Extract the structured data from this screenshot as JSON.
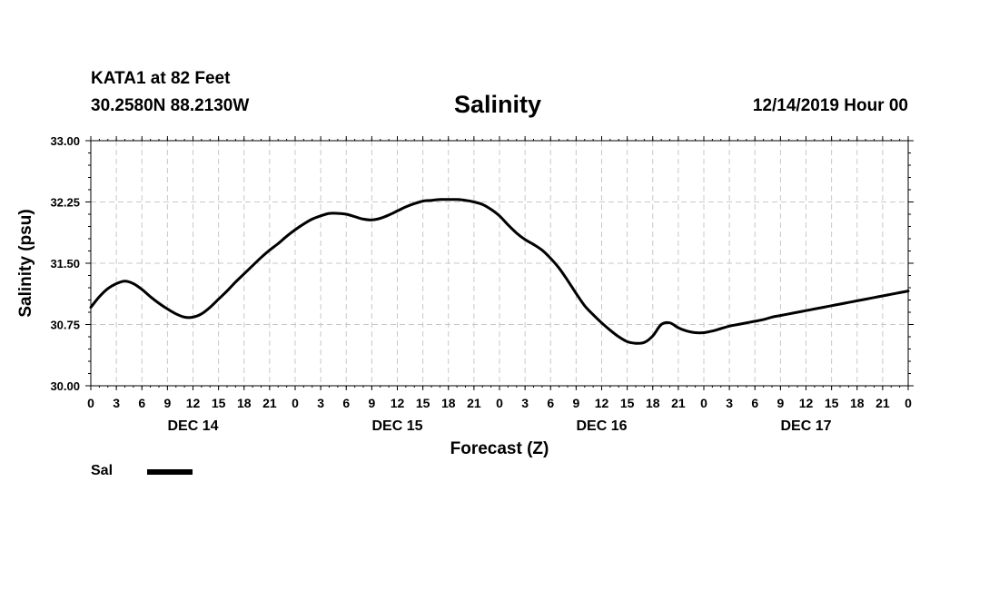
{
  "header": {
    "station": "KATA1 at 82 Feet",
    "coordinates": "30.2580N 88.2130W",
    "title": "Salinity",
    "run_time": "12/14/2019 Hour 00"
  },
  "legend": {
    "label": "Sal"
  },
  "chart_data": {
    "type": "line",
    "title": "Salinity",
    "xlabel": "Forecast (Z)",
    "ylabel": "Salinity (psu)",
    "ylim": [
      30.0,
      33.0
    ],
    "yticks": [
      "30.00",
      "30.75",
      "31.50",
      "32.25",
      "33.00"
    ],
    "xlim": [
      0,
      96
    ],
    "x_tick_step_hours": 3,
    "x_tick_labels": [
      "0",
      "3",
      "6",
      "9",
      "12",
      "15",
      "18",
      "21",
      "0",
      "3",
      "6",
      "9",
      "12",
      "15",
      "18",
      "21",
      "0",
      "3",
      "6",
      "9",
      "12",
      "15",
      "18",
      "21",
      "0",
      "3",
      "6",
      "9",
      "12",
      "15",
      "18",
      "21",
      "0"
    ],
    "day_labels": [
      {
        "label": "DEC 14",
        "hour": 12
      },
      {
        "label": "DEC 15",
        "hour": 36
      },
      {
        "label": "DEC 16",
        "hour": 60
      },
      {
        "label": "DEC 17",
        "hour": 84
      }
    ],
    "grid": true,
    "series": [
      {
        "name": "Sal",
        "color": "#000000",
        "x": [
          0,
          1,
          2,
          3,
          4,
          5,
          6,
          7,
          8,
          9,
          10,
          11,
          12,
          13,
          14,
          15,
          16,
          17,
          18,
          19,
          20,
          21,
          22,
          23,
          24,
          25,
          26,
          27,
          28,
          29,
          30,
          31,
          32,
          33,
          34,
          35,
          36,
          37,
          38,
          39,
          40,
          41,
          42,
          43,
          44,
          45,
          46,
          47,
          48,
          49,
          50,
          51,
          52,
          53,
          54,
          55,
          56,
          57,
          58,
          59,
          60,
          61,
          62,
          63,
          64,
          65,
          66,
          67,
          68,
          69,
          70,
          71,
          72,
          73,
          74,
          75,
          76,
          77,
          78,
          79,
          80,
          81,
          82,
          83,
          84,
          85,
          86,
          87,
          88,
          89,
          90,
          91,
          92,
          93,
          94,
          95,
          96
        ],
        "values": [
          30.96,
          31.09,
          31.19,
          31.25,
          31.28,
          31.25,
          31.18,
          31.09,
          31.01,
          30.94,
          30.88,
          30.84,
          30.84,
          30.88,
          30.96,
          31.06,
          31.16,
          31.27,
          31.37,
          31.47,
          31.57,
          31.66,
          31.74,
          31.83,
          31.91,
          31.98,
          32.04,
          32.08,
          32.11,
          32.11,
          32.1,
          32.07,
          32.04,
          32.03,
          32.05,
          32.09,
          32.14,
          32.19,
          32.23,
          32.26,
          32.27,
          32.28,
          32.28,
          32.28,
          32.27,
          32.25,
          32.22,
          32.16,
          32.08,
          31.97,
          31.87,
          31.79,
          31.73,
          31.66,
          31.56,
          31.44,
          31.29,
          31.13,
          30.98,
          30.87,
          30.77,
          30.68,
          30.6,
          30.54,
          30.52,
          30.53,
          30.61,
          30.75,
          30.77,
          30.71,
          30.67,
          30.65,
          30.65,
          30.67,
          30.7,
          30.73,
          30.75,
          30.77,
          30.79,
          30.81,
          30.84,
          30.86,
          30.88,
          30.9,
          30.92,
          30.94,
          30.96,
          30.98,
          31.0,
          31.02,
          31.04,
          31.06,
          31.08,
          31.1,
          31.12,
          31.14,
          31.16
        ]
      }
    ]
  }
}
